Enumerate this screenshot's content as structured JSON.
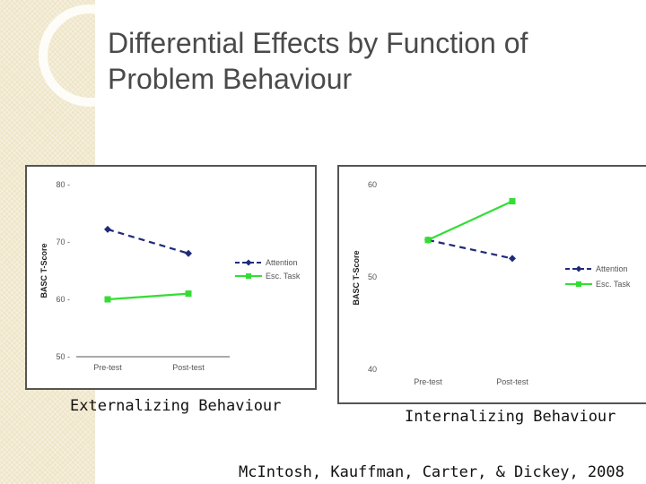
{
  "slide": {
    "title_line1": "Differential Effects by Function of",
    "title_line2": "Problem Behaviour",
    "citation": "McIntosh, Kauffman, Carter, & Dickey, 2008"
  },
  "colors": {
    "attention": "#1f2b7a",
    "esc_task": "#33dd33",
    "title_text": "#4a4a4a",
    "background_band": "#efe6c9"
  },
  "chart_data": [
    {
      "type": "line",
      "caption": "Externalizing Behaviour",
      "ylabel": "BASC T-Score",
      "xlabel": "",
      "categories": [
        "Pre-test",
        "Post-test"
      ],
      "ylim": [
        50,
        80
      ],
      "yticks": [
        50,
        60,
        70,
        80
      ],
      "ytick_labels": [
        "50 -",
        "60 -",
        "70 -",
        "80 -"
      ],
      "legend_position": "right",
      "series": [
        {
          "name": "Attention",
          "values": [
            72.2,
            68.0
          ],
          "style": "dashed",
          "marker": "diamond",
          "color": "#1f2b7a"
        },
        {
          "name": "Esc. Task",
          "values": [
            60.0,
            61.0
          ],
          "style": "solid",
          "marker": "square",
          "color": "#33dd33"
        }
      ]
    },
    {
      "type": "line",
      "caption": "Internalizing Behaviour",
      "ylabel": "BASC T-Score",
      "xlabel": "",
      "categories": [
        "Pre-test",
        "Post-test"
      ],
      "ylim": [
        40,
        60
      ],
      "yticks": [
        40,
        50,
        60
      ],
      "ytick_labels": [
        "40",
        "50",
        "60"
      ],
      "legend_position": "right",
      "series": [
        {
          "name": "Attention",
          "values": [
            54.0,
            52.0
          ],
          "style": "dashed",
          "marker": "diamond",
          "color": "#1f2b7a"
        },
        {
          "name": "Esc. Task",
          "values": [
            54.0,
            58.2
          ],
          "style": "solid",
          "marker": "square",
          "color": "#33dd33"
        }
      ]
    }
  ]
}
